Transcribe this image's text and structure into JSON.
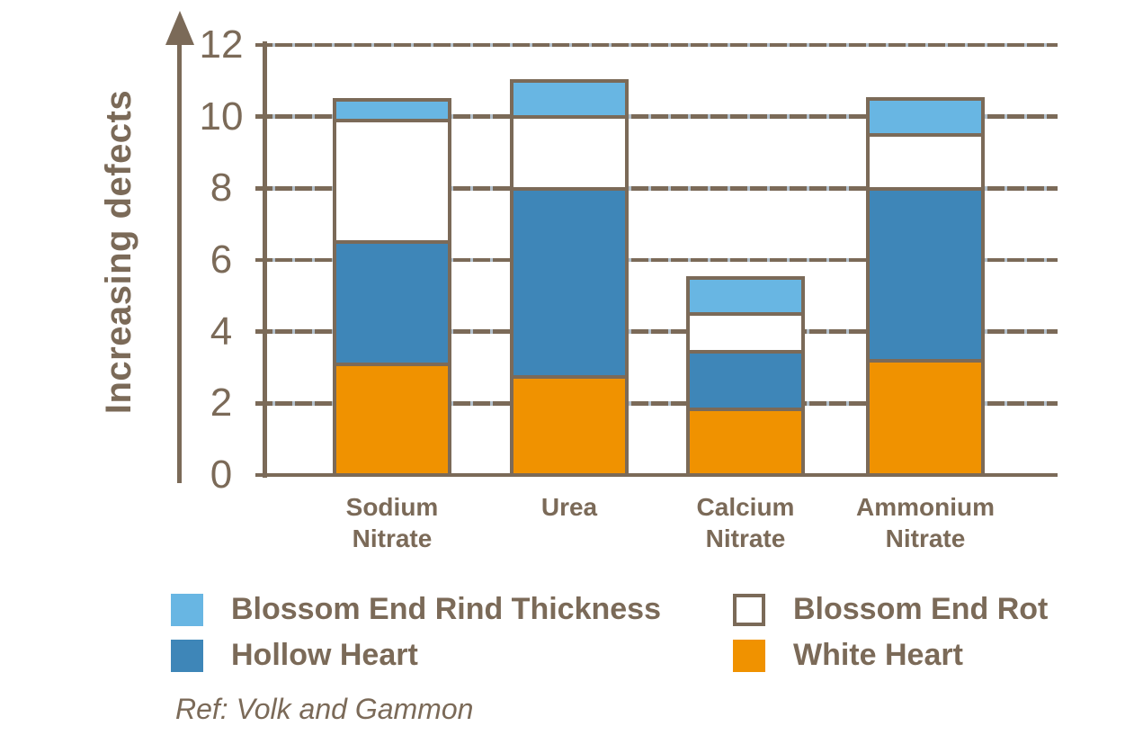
{
  "chart_data": {
    "type": "bar",
    "stacked": true,
    "ylabel": "Increasing defects",
    "ylim": [
      0,
      12
    ],
    "yticks": [
      0,
      2,
      4,
      6,
      8,
      10,
      12
    ],
    "grid": "horizontal",
    "categories": [
      "Sodium Nitrate",
      "Urea",
      "Calcium Nitrate",
      "Ammonium Nitrate"
    ],
    "category_lines": [
      [
        "Sodium",
        "Nitrate"
      ],
      [
        "Urea"
      ],
      [
        "Calcium",
        "Nitrate"
      ],
      [
        "Ammonium",
        "Nitrate"
      ]
    ],
    "series": [
      {
        "name": "White Heart",
        "color": "#f09200",
        "values": [
          3.1,
          2.75,
          1.85,
          3.2
        ]
      },
      {
        "name": "Hollow Heart",
        "color": "#3e86b8",
        "values": [
          3.4,
          5.25,
          1.6,
          4.8
        ]
      },
      {
        "name": "Blossom End Rot",
        "color": "#ffffff",
        "values": [
          3.4,
          2.0,
          1.05,
          1.5
        ]
      },
      {
        "name": "Blossom End Rind Thickness",
        "color": "#68b6e3",
        "values": [
          0.55,
          1.0,
          1.0,
          1.0
        ]
      }
    ],
    "totals": [
      10.45,
      11.0,
      5.5,
      10.5
    ],
    "legend": [
      {
        "label": "Blossom End Rind Thickness",
        "color": "#68b6e3",
        "bordered": false
      },
      {
        "label": "Blossom End Rot",
        "color": "#ffffff",
        "bordered": true
      },
      {
        "label": "Hollow Heart",
        "color": "#3e86b8",
        "bordered": false
      },
      {
        "label": "White Heart",
        "color": "#f09200",
        "bordered": false
      }
    ],
    "legend_position": "bottom"
  },
  "ref_text": "Ref: Volk and Gammon",
  "colors": {
    "axis_and_text": "#7b6a58",
    "light_blue": "#68b6e3",
    "dark_blue": "#3e86b8",
    "orange": "#f09200",
    "white": "#ffffff"
  }
}
